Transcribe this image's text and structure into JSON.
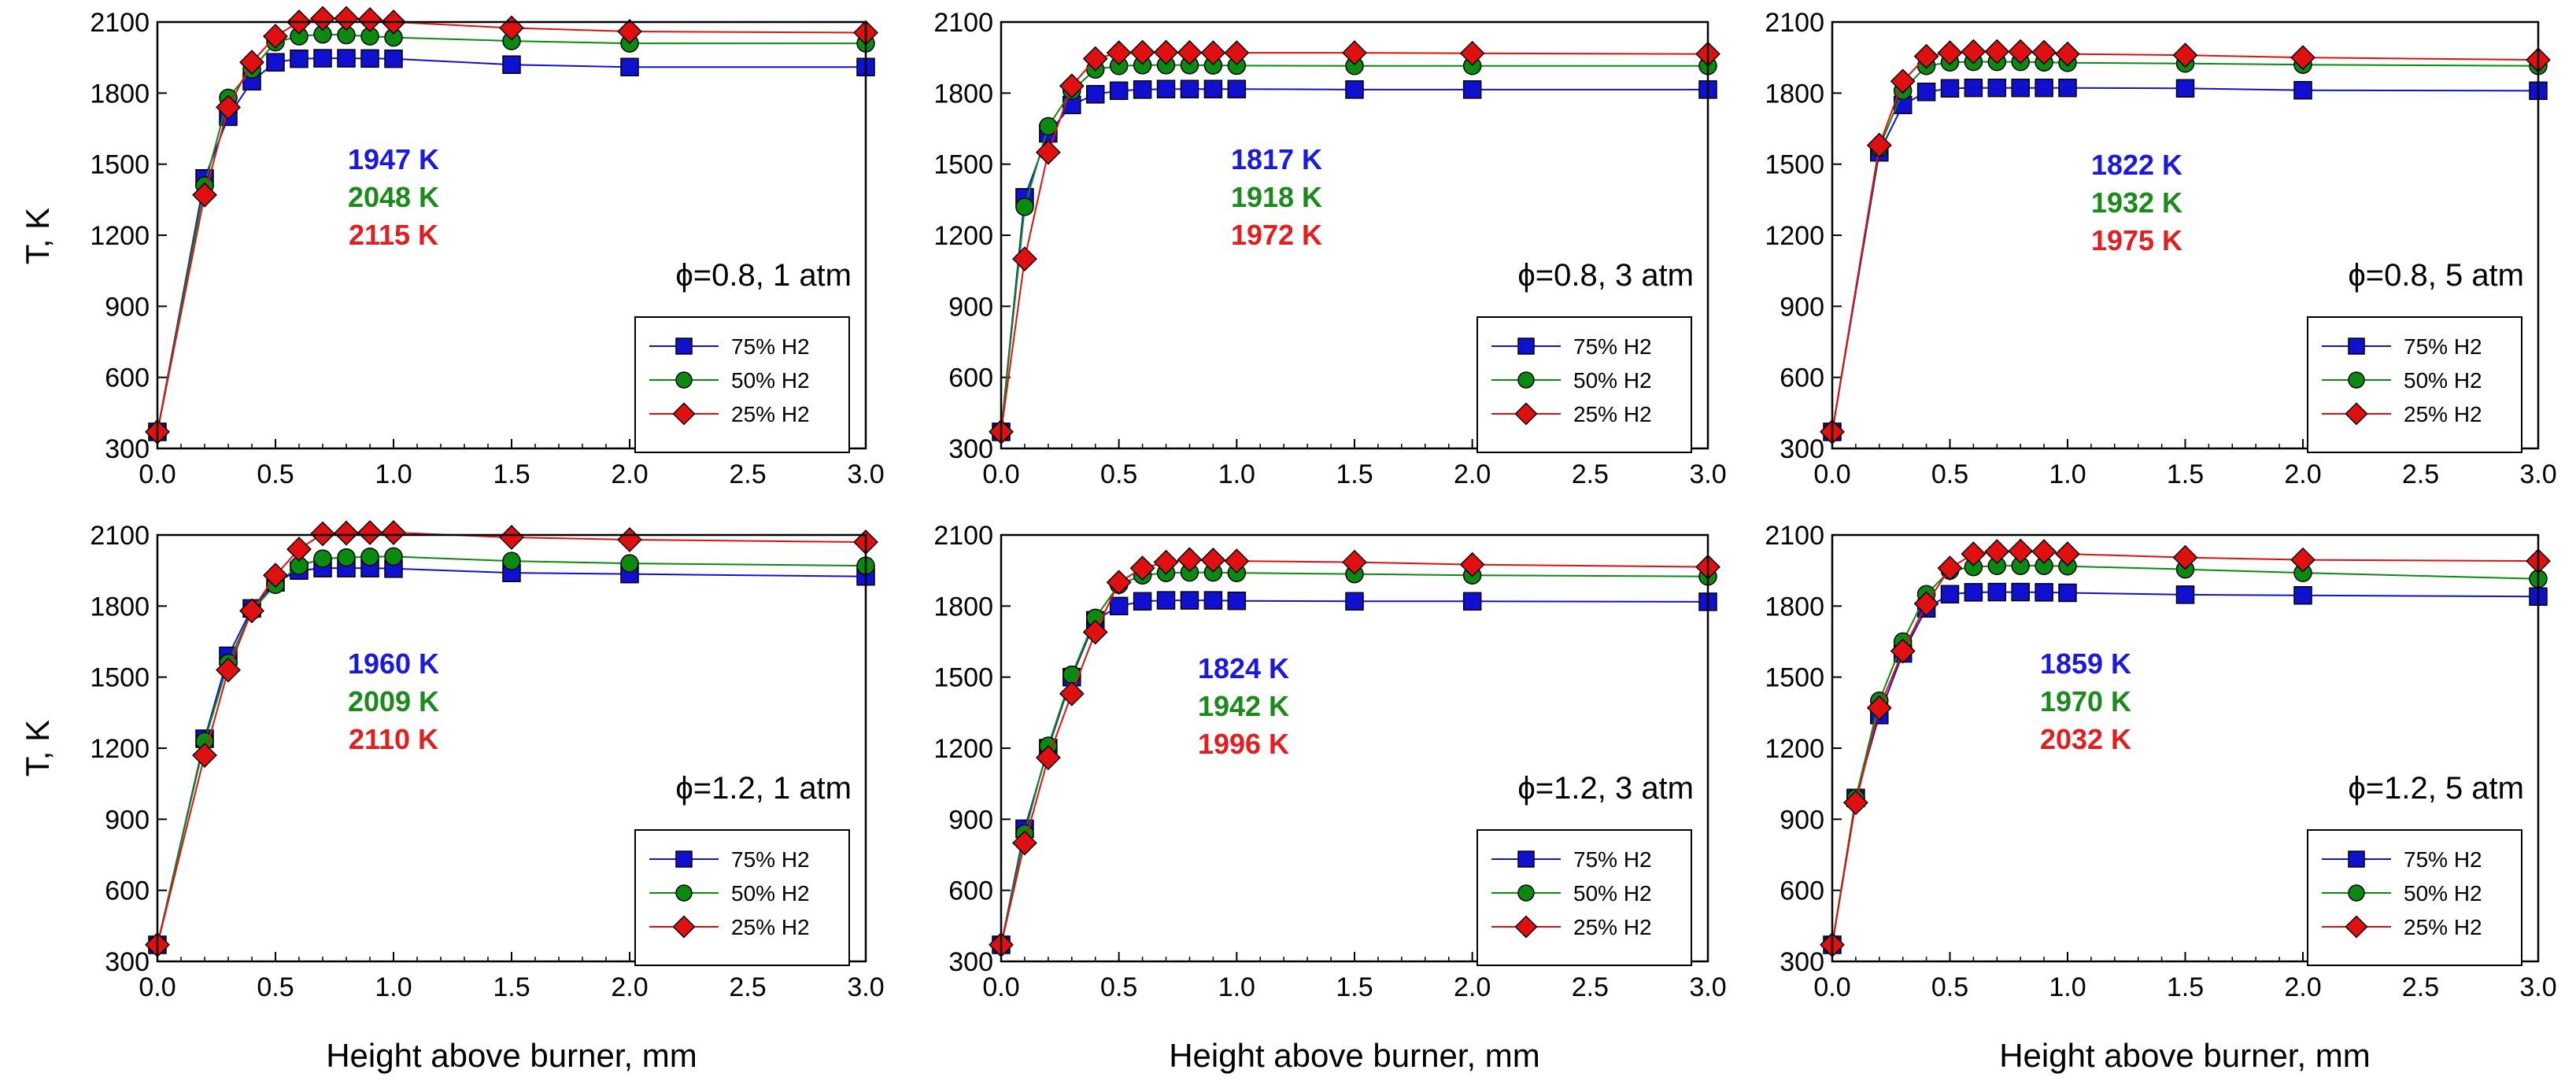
{
  "figure": {
    "xlabel": "Height above burner, mm",
    "ylabel": "T, K"
  },
  "colors": {
    "75% H2": "#1010d0",
    "50% H2": "#0a8a10",
    "25% H2": "#e01010",
    "peak_75": "#1a1adc",
    "peak_50": "#1a8a1a",
    "peak_25": "#e02020"
  },
  "chart_data": [
    {
      "type": "line",
      "condition": "ϕ=0.8, 1 atm",
      "xlim": [
        0,
        3.0
      ],
      "ylim": [
        300,
        2100
      ],
      "xticks": [
        "0.0",
        "0.5",
        "1.0",
        "1.5",
        "2.0",
        "2.5",
        "3.0"
      ],
      "yticks": [
        "300",
        "600",
        "900",
        "1200",
        "1500",
        "1800",
        "2100"
      ],
      "legend": [
        "75% H2",
        "50% H2",
        "25% H2"
      ],
      "peaks": [
        "1947 K",
        "2048 K",
        "2115 K"
      ],
      "series": [
        {
          "name": "75% H2",
          "x": [
            0,
            0.2,
            0.3,
            0.4,
            0.5,
            0.6,
            0.7,
            0.8,
            0.9,
            1.0,
            1.5,
            2.0,
            3.0
          ],
          "y": [
            370,
            1440,
            1700,
            1850,
            1930,
            1945,
            1947,
            1947,
            1946,
            1945,
            1920,
            1910,
            1910
          ]
        },
        {
          "name": "50% H2",
          "x": [
            0,
            0.2,
            0.3,
            0.4,
            0.5,
            0.6,
            0.7,
            0.8,
            0.9,
            1.0,
            1.5,
            2.0,
            3.0
          ],
          "y": [
            370,
            1410,
            1780,
            1900,
            2015,
            2040,
            2048,
            2045,
            2040,
            2035,
            2020,
            2010,
            2010
          ]
        },
        {
          "name": "25% H2",
          "x": [
            0,
            0.2,
            0.3,
            0.4,
            0.5,
            0.6,
            0.7,
            0.8,
            0.9,
            1.0,
            1.5,
            2.0,
            3.0
          ],
          "y": [
            370,
            1370,
            1740,
            1930,
            2040,
            2100,
            2115,
            2115,
            2110,
            2100,
            2075,
            2060,
            2055
          ]
        }
      ]
    },
    {
      "type": "line",
      "condition": "ϕ=0.8, 3 atm",
      "xlim": [
        0,
        3.0
      ],
      "ylim": [
        300,
        2100
      ],
      "xticks": [
        "0.0",
        "0.5",
        "1.0",
        "1.5",
        "2.0",
        "2.5",
        "3.0"
      ],
      "yticks": [
        "300",
        "600",
        "900",
        "1200",
        "1500",
        "1800",
        "2100"
      ],
      "legend": [
        "75% H2",
        "50% H2",
        "25% H2"
      ],
      "peaks": [
        "1817 K",
        "1918 K",
        "1972 K"
      ],
      "series": [
        {
          "name": "75% H2",
          "x": [
            0,
            0.1,
            0.2,
            0.3,
            0.4,
            0.5,
            0.6,
            0.7,
            0.8,
            0.9,
            1.0,
            1.5,
            2.0,
            3.0
          ],
          "y": [
            370,
            1360,
            1630,
            1750,
            1795,
            1810,
            1815,
            1817,
            1817,
            1817,
            1817,
            1815,
            1815,
            1815
          ]
        },
        {
          "name": "50% H2",
          "x": [
            0,
            0.1,
            0.2,
            0.3,
            0.4,
            0.5,
            0.6,
            0.7,
            0.8,
            0.9,
            1.0,
            1.5,
            2.0,
            3.0
          ],
          "y": [
            370,
            1320,
            1660,
            1810,
            1900,
            1915,
            1918,
            1918,
            1918,
            1917,
            1916,
            1915,
            1915,
            1915
          ]
        },
        {
          "name": "25% H2",
          "x": [
            0,
            0.1,
            0.2,
            0.3,
            0.4,
            0.5,
            0.6,
            0.7,
            0.8,
            0.9,
            1.0,
            1.5,
            2.0,
            3.0
          ],
          "y": [
            370,
            1100,
            1550,
            1830,
            1945,
            1970,
            1972,
            1972,
            1971,
            1970,
            1970,
            1970,
            1968,
            1965
          ]
        }
      ]
    },
    {
      "type": "line",
      "condition": "ϕ=0.8, 5 atm",
      "xlim": [
        0,
        3.0
      ],
      "ylim": [
        300,
        2100
      ],
      "xticks": [
        "0.0",
        "0.5",
        "1.0",
        "1.5",
        "2.0",
        "2.5",
        "3.0"
      ],
      "yticks": [
        "300",
        "600",
        "900",
        "1200",
        "1500",
        "1800",
        "2100"
      ],
      "legend": [
        "75% H2",
        "50% H2",
        "25% H2"
      ],
      "peaks": [
        "1822 K",
        "1932 K",
        "1975 K"
      ],
      "series": [
        {
          "name": "75% H2",
          "x": [
            0,
            0.2,
            0.3,
            0.4,
            0.5,
            0.6,
            0.7,
            0.8,
            0.9,
            1.0,
            1.5,
            2.0,
            3.0
          ],
          "y": [
            370,
            1550,
            1750,
            1805,
            1820,
            1822,
            1822,
            1822,
            1822,
            1822,
            1820,
            1812,
            1810
          ]
        },
        {
          "name": "50% H2",
          "x": [
            0,
            0.2,
            0.3,
            0.4,
            0.5,
            0.6,
            0.7,
            0.8,
            0.9,
            1.0,
            1.5,
            2.0,
            3.0
          ],
          "y": [
            370,
            1570,
            1810,
            1915,
            1930,
            1932,
            1932,
            1932,
            1930,
            1928,
            1925,
            1920,
            1915
          ]
        },
        {
          "name": "25% H2",
          "x": [
            0,
            0.2,
            0.3,
            0.4,
            0.5,
            0.6,
            0.7,
            0.8,
            0.9,
            1.0,
            1.5,
            2.0,
            3.0
          ],
          "y": [
            370,
            1580,
            1850,
            1955,
            1970,
            1975,
            1975,
            1975,
            1972,
            1965,
            1960,
            1950,
            1940
          ]
        }
      ]
    },
    {
      "type": "line",
      "condition": "ϕ=1.2, 1 atm",
      "xlim": [
        0,
        3.0
      ],
      "ylim": [
        300,
        2100
      ],
      "xticks": [
        "0.0",
        "0.5",
        "1.0",
        "1.5",
        "2.0",
        "2.5",
        "3.0"
      ],
      "yticks": [
        "300",
        "600",
        "900",
        "1200",
        "1500",
        "1800",
        "2100"
      ],
      "legend": [
        "75% H2",
        "50% H2",
        "25% H2"
      ],
      "peaks": [
        "1960 K",
        "2009 K",
        "2110 K"
      ],
      "series": [
        {
          "name": "75% H2",
          "x": [
            0,
            0.2,
            0.3,
            0.4,
            0.5,
            0.6,
            0.7,
            0.8,
            0.9,
            1.0,
            1.5,
            2.0,
            3.0
          ],
          "y": [
            370,
            1240,
            1590,
            1790,
            1900,
            1950,
            1960,
            1960,
            1960,
            1958,
            1940,
            1935,
            1925
          ]
        },
        {
          "name": "50% H2",
          "x": [
            0,
            0.2,
            0.3,
            0.4,
            0.5,
            0.6,
            0.7,
            0.8,
            0.9,
            1.0,
            1.5,
            2.0,
            3.0
          ],
          "y": [
            370,
            1230,
            1560,
            1780,
            1890,
            1970,
            2000,
            2005,
            2008,
            2009,
            1990,
            1980,
            1970
          ]
        },
        {
          "name": "25% H2",
          "x": [
            0,
            0.2,
            0.3,
            0.4,
            0.5,
            0.6,
            0.7,
            0.8,
            0.9,
            1.0,
            1.5,
            2.0,
            3.0
          ],
          "y": [
            370,
            1170,
            1530,
            1780,
            1930,
            2040,
            2105,
            2108,
            2110,
            2110,
            2090,
            2080,
            2070
          ]
        }
      ]
    },
    {
      "type": "line",
      "condition": "ϕ=1.2, 3 atm",
      "xlim": [
        0,
        3.0
      ],
      "ylim": [
        300,
        2100
      ],
      "xticks": [
        "0.0",
        "0.5",
        "1.0",
        "1.5",
        "2.0",
        "2.5",
        "3.0"
      ],
      "yticks": [
        "300",
        "600",
        "900",
        "1200",
        "1500",
        "1800",
        "2100"
      ],
      "legend": [
        "75% H2",
        "50% H2",
        "25% H2"
      ],
      "peaks": [
        "1824 K",
        "1942 K",
        "1996 K"
      ],
      "series": [
        {
          "name": "75% H2",
          "x": [
            0,
            0.1,
            0.2,
            0.3,
            0.4,
            0.5,
            0.6,
            0.7,
            0.8,
            0.9,
            1.0,
            1.5,
            2.0,
            3.0
          ],
          "y": [
            370,
            860,
            1200,
            1500,
            1740,
            1800,
            1820,
            1824,
            1824,
            1824,
            1822,
            1820,
            1820,
            1818
          ]
        },
        {
          "name": "50% H2",
          "x": [
            0,
            0.1,
            0.2,
            0.3,
            0.4,
            0.5,
            0.6,
            0.7,
            0.8,
            0.9,
            1.0,
            1.5,
            2.0,
            3.0
          ],
          "y": [
            370,
            840,
            1210,
            1510,
            1750,
            1890,
            1930,
            1940,
            1942,
            1942,
            1940,
            1935,
            1930,
            1925
          ]
        },
        {
          "name": "25% H2",
          "x": [
            0,
            0.1,
            0.2,
            0.3,
            0.4,
            0.5,
            0.6,
            0.7,
            0.8,
            0.9,
            1.0,
            1.5,
            2.0,
            3.0
          ],
          "y": [
            370,
            800,
            1160,
            1430,
            1690,
            1900,
            1960,
            1985,
            1996,
            1994,
            1990,
            1985,
            1975,
            1965
          ]
        }
      ]
    },
    {
      "type": "line",
      "condition": "ϕ=1.2, 5 atm",
      "xlim": [
        0,
        3.0
      ],
      "ylim": [
        300,
        2100
      ],
      "xticks": [
        "0.0",
        "0.5",
        "1.0",
        "1.5",
        "2.0",
        "2.5",
        "3.0"
      ],
      "yticks": [
        "300",
        "600",
        "900",
        "1200",
        "1500",
        "1800",
        "2100"
      ],
      "legend": [
        "75% H2",
        "50% H2",
        "25% H2"
      ],
      "peaks": [
        "1859 K",
        "1970 K",
        "2032 K"
      ],
      "series": [
        {
          "name": "75% H2",
          "x": [
            0,
            0.1,
            0.2,
            0.3,
            0.4,
            0.5,
            0.6,
            0.7,
            0.8,
            0.9,
            1.0,
            1.5,
            2.0,
            3.0
          ],
          "y": [
            370,
            990,
            1340,
            1600,
            1790,
            1850,
            1858,
            1859,
            1859,
            1858,
            1856,
            1848,
            1845,
            1840
          ]
        },
        {
          "name": "50% H2",
          "x": [
            0,
            0.1,
            0.2,
            0.3,
            0.4,
            0.5,
            0.6,
            0.7,
            0.8,
            0.9,
            1.0,
            1.5,
            2.0,
            3.0
          ],
          "y": [
            370,
            990,
            1400,
            1650,
            1850,
            1950,
            1965,
            1970,
            1970,
            1970,
            1968,
            1955,
            1940,
            1915
          ]
        },
        {
          "name": "25% H2",
          "x": [
            0,
            0.1,
            0.2,
            0.3,
            0.4,
            0.5,
            0.6,
            0.7,
            0.8,
            0.9,
            1.0,
            1.5,
            2.0,
            3.0
          ],
          "y": [
            370,
            970,
            1370,
            1610,
            1810,
            1960,
            2020,
            2030,
            2032,
            2030,
            2020,
            2005,
            1995,
            1990
          ]
        }
      ]
    }
  ]
}
